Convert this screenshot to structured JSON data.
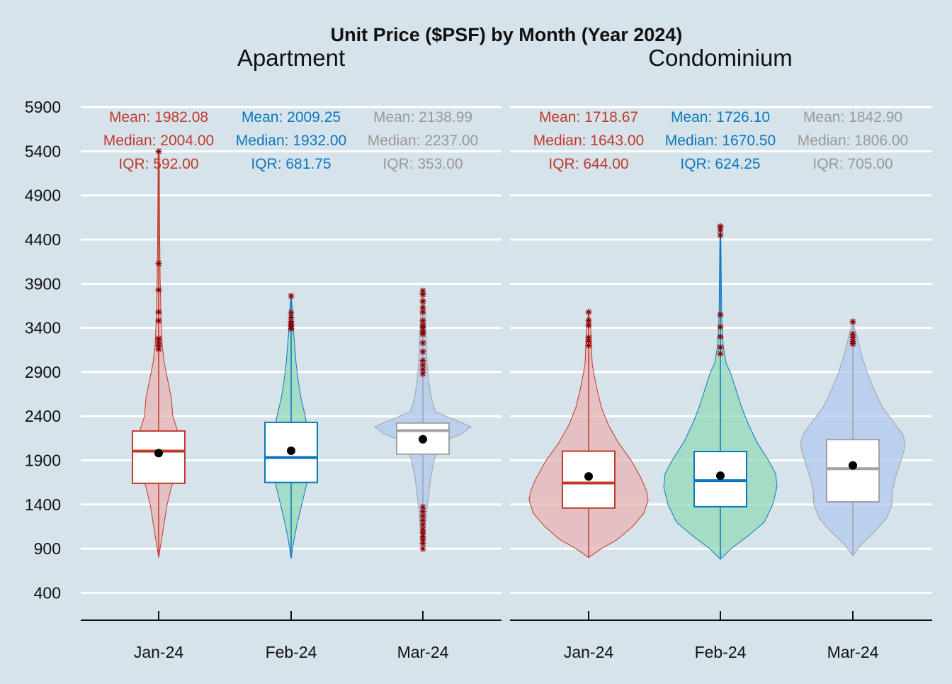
{
  "chart_data": {
    "type": "violin-boxplot",
    "title": "Unit Price ($PSF) by Month (Year 2024)",
    "y_axis": {
      "ticks": [
        400,
        900,
        1400,
        1900,
        2400,
        2900,
        3400,
        3900,
        4400,
        4900,
        5400,
        5900
      ],
      "ylim": [
        130,
        6150
      ],
      "grid": true
    },
    "month_colors": {
      "Jan-24": {
        "line": "#c0392b",
        "fill": "#e8b4b4",
        "text": "#c0392b"
      },
      "Feb-24": {
        "line": "#0a78be",
        "fill": "#94dab8",
        "text": "#0a78be"
      },
      "Mar-24": {
        "line": "#a2a2a2",
        "fill": "#b0c9ef",
        "text": "#999999"
      }
    },
    "outlier_color": "#8b0000",
    "mean_point_color": "#000000",
    "panels": [
      {
        "name": "Apartment",
        "groups": [
          {
            "month": "Jan-24",
            "mean_label": "Mean: 1982.08",
            "median_label": "Median: 2004.00",
            "iqr_label": "IQR: 592.00",
            "mean": 1982.08,
            "median": 2004.0,
            "q1": 1640,
            "q3": 2232,
            "min": 800,
            "max": 5400,
            "violin": [
              [
                800,
                0
              ],
              [
                1000,
                4
              ],
              [
                1200,
                8
              ],
              [
                1400,
                12
              ],
              [
                1600,
                18
              ],
              [
                1800,
                26
              ],
              [
                2000,
                28
              ],
              [
                2200,
                28
              ],
              [
                2400,
                20
              ],
              [
                2600,
                18
              ],
              [
                2800,
                13
              ],
              [
                3000,
                8
              ],
              [
                3200,
                5
              ],
              [
                3400,
                4
              ],
              [
                3600,
                3
              ],
              [
                4000,
                2
              ],
              [
                4400,
                1.5
              ],
              [
                5000,
                1
              ],
              [
                5400,
                0.8
              ]
            ],
            "outliers": [
              3160,
              3200,
              3240,
              3280,
              3480,
              3580,
              3830,
              4130,
              5400
            ]
          },
          {
            "month": "Feb-24",
            "mean_label": "Mean: 2009.25",
            "median_label": "Median: 1932.00",
            "iqr_label": "IQR: 681.75",
            "mean": 2009.25,
            "median": 1932.0,
            "q1": 1650,
            "q3": 2330,
            "min": 790,
            "max": 3760,
            "violin": [
              [
                790,
                0
              ],
              [
                1000,
                4
              ],
              [
                1200,
                9
              ],
              [
                1400,
                15
              ],
              [
                1600,
                21
              ],
              [
                1800,
                26
              ],
              [
                2000,
                28
              ],
              [
                2200,
                24
              ],
              [
                2400,
                20
              ],
              [
                2600,
                14
              ],
              [
                2800,
                10
              ],
              [
                3000,
                7
              ],
              [
                3200,
                5
              ],
              [
                3400,
                3
              ],
              [
                3600,
                2
              ],
              [
                3760,
                0
              ]
            ],
            "outliers": [
              3390,
              3420,
              3440,
              3470,
              3520,
              3570,
              3760
            ]
          },
          {
            "month": "Mar-24",
            "mean_label": "Mean: 2138.99",
            "median_label": "Median: 2237.00",
            "iqr_label": "IQR: 353.00",
            "mean": 2138.99,
            "median": 2237.0,
            "q1": 1970,
            "q3": 2323,
            "min": 900,
            "max": 3820,
            "violin": [
              [
                900,
                0
              ],
              [
                1100,
                3
              ],
              [
                1300,
                5
              ],
              [
                1500,
                8
              ],
              [
                1700,
                11
              ],
              [
                1900,
                16
              ],
              [
                2100,
                24
              ],
              [
                2200,
                55
              ],
              [
                2280,
                68
              ],
              [
                2350,
                48
              ],
              [
                2450,
                18
              ],
              [
                2600,
                12
              ],
              [
                2800,
                8
              ],
              [
                3000,
                6
              ],
              [
                3200,
                5
              ],
              [
                3400,
                4
              ],
              [
                3600,
                3
              ],
              [
                3820,
                0
              ]
            ],
            "outliers": [
              900,
              960,
              1000,
              1040,
              1080,
              1120,
              1170,
              1220,
              1270,
              1320,
              1370,
              2880,
              2930,
              2980,
              3030,
              3130,
              3230,
              3330,
              3360,
              3400,
              3430,
              3480,
              3580,
              3630,
              3700,
              3780,
              3820
            ]
          }
        ]
      },
      {
        "name": "Condominium",
        "groups": [
          {
            "month": "Jan-24",
            "mean_label": "Mean: 1718.67",
            "median_label": "Median: 1643.00",
            "iqr_label": "IQR: 644.00",
            "mean": 1718.67,
            "median": 1643.0,
            "q1": 1360,
            "q3": 2004,
            "min": 800,
            "max": 3580,
            "violin": [
              [
                800,
                0
              ],
              [
                900,
                18
              ],
              [
                1000,
                40
              ],
              [
                1150,
                62
              ],
              [
                1300,
                78
              ],
              [
                1450,
                84
              ],
              [
                1550,
                82
              ],
              [
                1700,
                74
              ],
              [
                1900,
                60
              ],
              [
                2100,
                42
              ],
              [
                2300,
                28
              ],
              [
                2500,
                18
              ],
              [
                2700,
                12
              ],
              [
                2900,
                7
              ],
              [
                3000,
                5
              ],
              [
                3200,
                4
              ],
              [
                3400,
                3
              ],
              [
                3580,
                0
              ]
            ],
            "outliers": [
              3200,
              3250,
              3290,
              3430,
              3480,
              3580
            ]
          },
          {
            "month": "Feb-24",
            "mean_label": "Mean: 1726.10",
            "median_label": "Median: 1670.50",
            "iqr_label": "IQR: 624.25",
            "mean": 1726.1,
            "median": 1670.5,
            "q1": 1375,
            "q3": 2000,
            "min": 780,
            "max": 4550,
            "violin": [
              [
                780,
                0
              ],
              [
                900,
                15
              ],
              [
                1050,
                40
              ],
              [
                1200,
                62
              ],
              [
                1400,
                74
              ],
              [
                1600,
                80
              ],
              [
                1750,
                78
              ],
              [
                1900,
                68
              ],
              [
                2100,
                52
              ],
              [
                2300,
                40
              ],
              [
                2500,
                30
              ],
              [
                2700,
                22
              ],
              [
                2900,
                14
              ],
              [
                3000,
                8
              ],
              [
                3200,
                4
              ],
              [
                3500,
                2
              ],
              [
                3800,
                1.5
              ],
              [
                4200,
                1
              ],
              [
                4550,
                0.5
              ]
            ],
            "outliers": [
              3110,
              3180,
              3300,
              3410,
              3550,
              4450,
              4510,
              4550
            ]
          },
          {
            "month": "Mar-24",
            "mean_label": "Mean: 1842.90",
            "median_label": "Median: 1806.00",
            "iqr_label": "IQR: 705.00",
            "mean": 1842.9,
            "median": 1806.0,
            "q1": 1430,
            "q3": 2135,
            "min": 820,
            "max": 3470,
            "violin": [
              [
                820,
                0
              ],
              [
                950,
                12
              ],
              [
                1100,
                32
              ],
              [
                1250,
                48
              ],
              [
                1400,
                55
              ],
              [
                1550,
                56
              ],
              [
                1700,
                60
              ],
              [
                1850,
                66
              ],
              [
                2000,
                72
              ],
              [
                2100,
                74
              ],
              [
                2200,
                70
              ],
              [
                2350,
                56
              ],
              [
                2500,
                42
              ],
              [
                2700,
                30
              ],
              [
                2900,
                20
              ],
              [
                3100,
                12
              ],
              [
                3300,
                6
              ],
              [
                3470,
                0
              ]
            ],
            "outliers": [
              3220,
              3250,
              3290,
              3330,
              3470
            ]
          }
        ]
      }
    ]
  }
}
